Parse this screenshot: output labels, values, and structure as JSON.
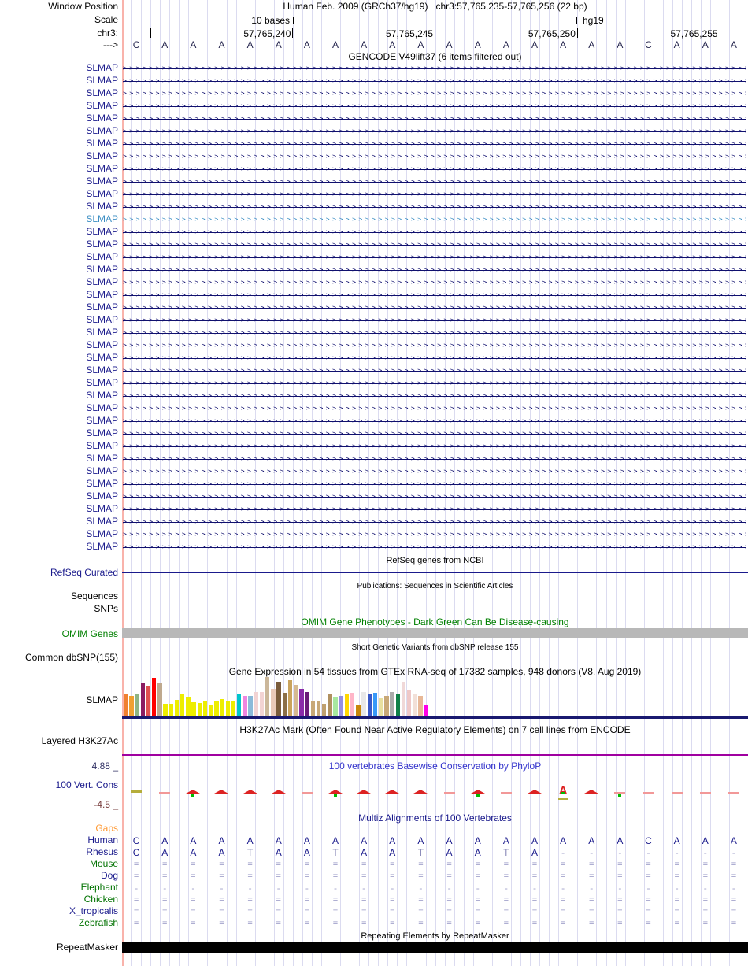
{
  "colors": {
    "gridline": "#DBDBF0",
    "left_border": "#F9B3AB",
    "arrow": "#10106E",
    "sequence_text": "#26264F",
    "align_base": "#1A1A8C",
    "align_muted": "#8A8AB8",
    "align_gap": "#A6A6CC",
    "align_double": "#9494C4",
    "phylop_peak": "#DD2222",
    "phylop_dash": "#F29898",
    "phylop_olive": "#B5AD3C",
    "phylop_green": "#00BB00",
    "navy": "#1A1A8C",
    "green": "#007200"
  },
  "header": {
    "window_position_label": "Window Position",
    "assembly_title": "Human Feb. 2009 (GRCh37/hg19)",
    "position_title": "chr3:57,765,235-57,765,256 (22 bp)",
    "scale_label": "Scale",
    "scale_value": "10 bases",
    "assembly_short": "hg19",
    "chrom_label": "chr3:",
    "strand_label": "--->",
    "ruler_ticks": [
      "57,765,240",
      "57,765,245",
      "57,765,250",
      "57,765,255"
    ],
    "sequence": [
      "C",
      "A",
      "A",
      "A",
      "A",
      "A",
      "A",
      "A",
      "A",
      "A",
      "A",
      "A",
      "A",
      "A",
      "A",
      "A",
      "A",
      "A",
      "C",
      "A",
      "A",
      "A"
    ]
  },
  "gencode": {
    "caption": "GENCODE V49lift37 (6 items filtered out)",
    "gene_label": "SLMAP",
    "row_count": 39,
    "highlight_index": 12,
    "normal_color": "#1A1A8C",
    "highlight_color": "#3D8FC4"
  },
  "refseq": {
    "caption": "RefSeq genes from NCBI",
    "track_label": "RefSeq Curated"
  },
  "publications": {
    "caption": "Publications: Sequences in Scientific Articles",
    "track_label_sequences": "Sequences",
    "track_label_snps": "SNPs"
  },
  "omim": {
    "caption": "OMIM Gene Phenotypes - Dark Green Can Be Disease-causing",
    "track_label": "OMIM Genes",
    "caption_color": "#008000",
    "bar_color": "#B8B8B8"
  },
  "dbsnp": {
    "caption": "Short Genetic Variants from dbSNP release 155",
    "track_label": "Common dbSNP(155)"
  },
  "gtex": {
    "caption": "Gene Expression in 54 tissues from GTEx RNA-seq of 17382 samples, 948 donors (V8, Aug 2019)",
    "track_label": "SLMAP",
    "baseline_color": "#191970",
    "bars": [
      {
        "color": "#F08030",
        "h": 0.55
      },
      {
        "color": "#F0A030",
        "h": 0.52
      },
      {
        "color": "#8FB483",
        "h": 0.57
      },
      {
        "color": "#8B1C62",
        "h": 0.85
      },
      {
        "color": "#E05050",
        "h": 0.78
      },
      {
        "color": "#FF0000",
        "h": 0.97
      },
      {
        "color": "#BFA98E",
        "h": 0.83
      },
      {
        "color": "#EDED00",
        "h": 0.32
      },
      {
        "color": "#EDED00",
        "h": 0.32
      },
      {
        "color": "#EDED00",
        "h": 0.42
      },
      {
        "color": "#EDED00",
        "h": 0.55
      },
      {
        "color": "#EDED00",
        "h": 0.5
      },
      {
        "color": "#EDED00",
        "h": 0.35
      },
      {
        "color": "#EDED00",
        "h": 0.33
      },
      {
        "color": "#EDED00",
        "h": 0.4
      },
      {
        "color": "#EDED00",
        "h": 0.3
      },
      {
        "color": "#EDED00",
        "h": 0.37
      },
      {
        "color": "#EDED00",
        "h": 0.43
      },
      {
        "color": "#EDED00",
        "h": 0.37
      },
      {
        "color": "#EDED00",
        "h": 0.4
      },
      {
        "color": "#00C5CC",
        "h": 0.55
      },
      {
        "color": "#EE85E0",
        "h": 0.52
      },
      {
        "color": "#8CBAD9",
        "h": 0.52
      },
      {
        "color": "#F2D3D3",
        "h": 0.62
      },
      {
        "color": "#F2D3D3",
        "h": 0.62
      },
      {
        "color": "#CBB79A",
        "h": 1.0
      },
      {
        "color": "#E9C9B9",
        "h": 0.7
      },
      {
        "color": "#7A5C3C",
        "h": 0.88
      },
      {
        "color": "#8B6F47",
        "h": 0.6
      },
      {
        "color": "#C9A35C",
        "h": 0.92
      },
      {
        "color": "#D5B990",
        "h": 0.8
      },
      {
        "color": "#8A2BA8",
        "h": 0.7
      },
      {
        "color": "#6A1B78",
        "h": 0.62
      },
      {
        "color": "#C8A878",
        "h": 0.4
      },
      {
        "color": "#C8A878",
        "h": 0.38
      },
      {
        "color": "#BFA070",
        "h": 0.32
      },
      {
        "color": "#B09060",
        "h": 0.55
      },
      {
        "color": "#A8E8A0",
        "h": 0.5
      },
      {
        "color": "#968FE0",
        "h": 0.52
      },
      {
        "color": "#FFD700",
        "h": 0.58
      },
      {
        "color": "#FFB6C8",
        "h": 0.6
      },
      {
        "color": "#C8860B",
        "h": 0.3
      },
      {
        "color": "#E8E8E8",
        "h": 0.62
      },
      {
        "color": "#3858C8",
        "h": 0.55
      },
      {
        "color": "#3898F8",
        "h": 0.6
      },
      {
        "color": "#E8E0A0",
        "h": 0.48
      },
      {
        "color": "#C8A878",
        "h": 0.52
      },
      {
        "color": "#ABABAB",
        "h": 0.62
      },
      {
        "color": "#108048",
        "h": 0.58
      },
      {
        "color": "#F0D8D8",
        "h": 0.88
      },
      {
        "color": "#EFC8C8",
        "h": 0.65
      },
      {
        "color": "#F2E0D8",
        "h": 0.55
      },
      {
        "color": "#E8B898",
        "h": 0.52
      },
      {
        "color": "#FF00E8",
        "h": 0.3
      }
    ]
  },
  "h3k27ac": {
    "caption": "H3K27Ac Mark (Often Found Near Active Regulatory Elements) on 7 cell lines from ENCODE",
    "track_label": "Layered H3K27Ac",
    "line_color": "#A000A0"
  },
  "phylop": {
    "caption": "100 vertebrates Basewise Conservation by PhyloP",
    "track_label": "100 Vert. Cons",
    "max_label": "4.88 _",
    "min_label": "-4.5 _",
    "marks": [
      {
        "c": 1,
        "t": "olive"
      },
      {
        "c": 2,
        "t": "dash"
      },
      {
        "c": 3,
        "t": "hump",
        "g": true
      },
      {
        "c": 4,
        "t": "hump"
      },
      {
        "c": 5,
        "t": "hump"
      },
      {
        "c": 6,
        "t": "hump"
      },
      {
        "c": 7,
        "t": "dash"
      },
      {
        "c": 8,
        "t": "hump",
        "g": true
      },
      {
        "c": 9,
        "t": "hump"
      },
      {
        "c": 10,
        "t": "hump"
      },
      {
        "c": 11,
        "t": "hump"
      },
      {
        "c": 12,
        "t": "dash"
      },
      {
        "c": 13,
        "t": "hump",
        "g": true
      },
      {
        "c": 14,
        "t": "dash"
      },
      {
        "c": 15,
        "t": "hump"
      },
      {
        "c": 16,
        "t": "bigA",
        "g": true
      },
      {
        "c": 17,
        "t": "hump"
      },
      {
        "c": 18,
        "t": "dash",
        "g": true
      },
      {
        "c": 19,
        "t": "dash"
      },
      {
        "c": 20,
        "t": "dash"
      },
      {
        "c": 21,
        "t": "dash"
      },
      {
        "c": 22,
        "t": "dash"
      }
    ]
  },
  "multiz": {
    "caption": "Multiz Alignments of 100 Vertebrates",
    "rows": [
      {
        "label": "Gaps",
        "label_color": "#FF9933",
        "type": "empty"
      },
      {
        "label": "Human",
        "label_color": "#1A1A8C",
        "type": "bases",
        "cells": [
          "C",
          "A",
          "A",
          "A",
          "A",
          "A",
          "A",
          "A",
          "A",
          "A",
          "A",
          "A",
          "A",
          "A",
          "A",
          "A",
          "A",
          "A",
          "C",
          "A",
          "A",
          "A"
        ]
      },
      {
        "label": "Rhesus",
        "label_color": "#1A1A8C",
        "type": "bases",
        "cells": [
          "C",
          "A",
          "A",
          "A",
          "T",
          "A",
          "A",
          "T",
          "A",
          "A",
          "T",
          "A",
          "A",
          "T",
          "A",
          "-",
          "-",
          "-",
          "-",
          "-",
          "-",
          "-"
        ]
      },
      {
        "label": "Mouse",
        "label_color": "#007200",
        "type": "fill",
        "symbol": "="
      },
      {
        "label": "Dog",
        "label_color": "#1A1A8C",
        "type": "fill",
        "symbol": "="
      },
      {
        "label": "Elephant",
        "label_color": "#007200",
        "type": "fill",
        "symbol": "-"
      },
      {
        "label": "Chicken",
        "label_color": "#007200",
        "type": "fill",
        "symbol": "="
      },
      {
        "label": "X_tropicalis",
        "label_color": "#1A1A8C",
        "type": "fill",
        "symbol": "="
      },
      {
        "label": "Zebrafish",
        "label_color": "#007200",
        "type": "fill",
        "symbol": "="
      }
    ]
  },
  "repeatmasker": {
    "caption": "Repeating Elements by RepeatMasker",
    "track_label": "RepeatMasker",
    "bar_color": "#000000"
  }
}
